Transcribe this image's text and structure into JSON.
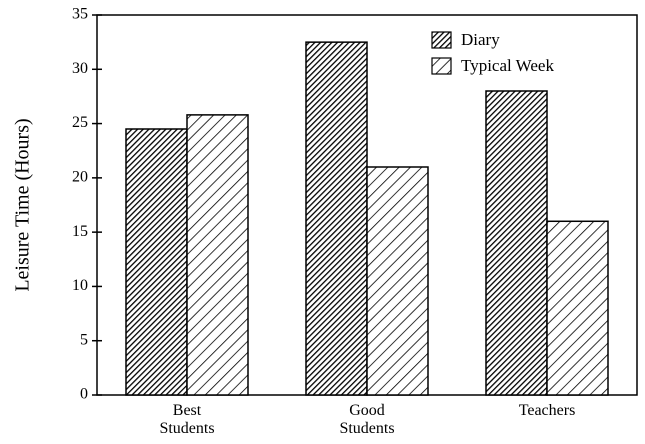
{
  "chart_data": {
    "type": "bar",
    "y_label": "Leisure Time (Hours)",
    "categories": [
      "Best Students",
      "Good Students",
      "Teachers"
    ],
    "series": [
      {
        "name": "Diary",
        "color": "#000000",
        "values": [
          24.5,
          32.5,
          28.0
        ]
      },
      {
        "name": "Typical Week",
        "color": "#000000",
        "values": [
          25.8,
          21.0,
          16.0
        ]
      }
    ],
    "ylim": [
      0,
      35
    ],
    "yticks": [
      0,
      5,
      10,
      15,
      20,
      25,
      30,
      35
    ],
    "grid": false,
    "legend": "upper right"
  }
}
